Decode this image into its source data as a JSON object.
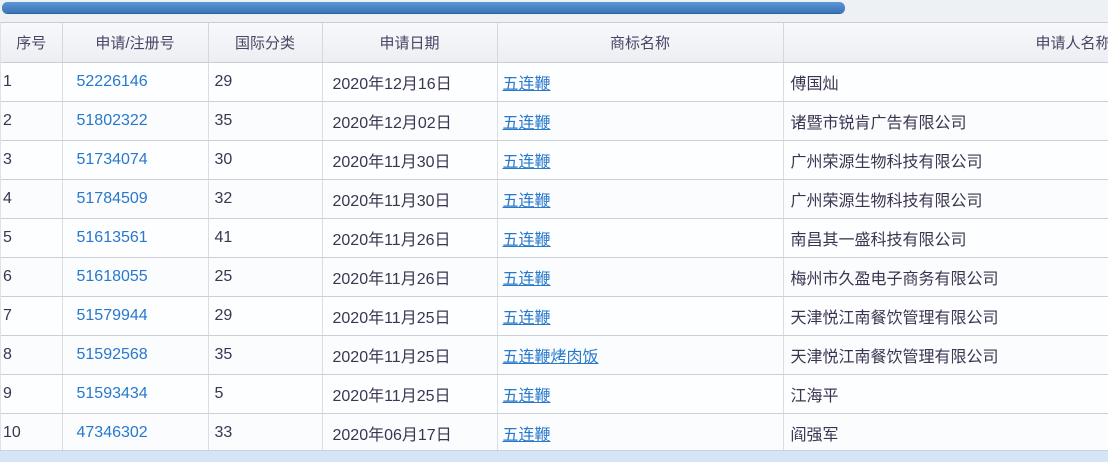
{
  "title_bar": {
    "color": "#4181c8"
  },
  "colors": {
    "accent_blue": "#4181c8",
    "link_blue": "#2878cc",
    "header_text": "#4a4465",
    "body_text": "#3b3550",
    "bottom_strip": "#d6e5f6"
  },
  "table": {
    "columns": [
      {
        "key": "no",
        "label": "序号"
      },
      {
        "key": "app_no",
        "label": "申请/注册号"
      },
      {
        "key": "intl_class",
        "label": "国际分类"
      },
      {
        "key": "date",
        "label": "申请日期"
      },
      {
        "key": "mark",
        "label": "商标名称"
      },
      {
        "key": "applicant",
        "label": "申请人名称"
      }
    ],
    "rows": [
      {
        "no": "1",
        "app_no": "52226146",
        "intl_class": "29",
        "date": "2020年12月16日",
        "mark": "五连鞭",
        "applicant": "傅国灿"
      },
      {
        "no": "2",
        "app_no": "51802322",
        "intl_class": "35",
        "date": "2020年12月02日",
        "mark": "五连鞭",
        "applicant": "诸暨市锐肯广告有限公司"
      },
      {
        "no": "3",
        "app_no": "51734074",
        "intl_class": "30",
        "date": "2020年11月30日",
        "mark": "五连鞭",
        "applicant": "广州荣源生物科技有限公司"
      },
      {
        "no": "4",
        "app_no": "51784509",
        "intl_class": "32",
        "date": "2020年11月30日",
        "mark": "五连鞭",
        "applicant": "广州荣源生物科技有限公司"
      },
      {
        "no": "5",
        "app_no": "51613561",
        "intl_class": "41",
        "date": "2020年11月26日",
        "mark": "五连鞭",
        "applicant": "南昌其一盛科技有限公司"
      },
      {
        "no": "6",
        "app_no": "51618055",
        "intl_class": "25",
        "date": "2020年11月26日",
        "mark": "五连鞭",
        "applicant": "梅州市久盈电子商务有限公司"
      },
      {
        "no": "7",
        "app_no": "51579944",
        "intl_class": "29",
        "date": "2020年11月25日",
        "mark": "五连鞭",
        "applicant": "天津悦江南餐饮管理有限公司"
      },
      {
        "no": "8",
        "app_no": "51592568",
        "intl_class": "35",
        "date": "2020年11月25日",
        "mark": "五连鞭烤肉饭",
        "applicant": "天津悦江南餐饮管理有限公司"
      },
      {
        "no": "9",
        "app_no": "51593434",
        "intl_class": "5",
        "date": "2020年11月25日",
        "mark": "五连鞭",
        "applicant": "江海平"
      },
      {
        "no": "10",
        "app_no": "47346302",
        "intl_class": "33",
        "date": "2020年06月17日",
        "mark": "五连鞭",
        "applicant": "阎强军"
      }
    ]
  }
}
